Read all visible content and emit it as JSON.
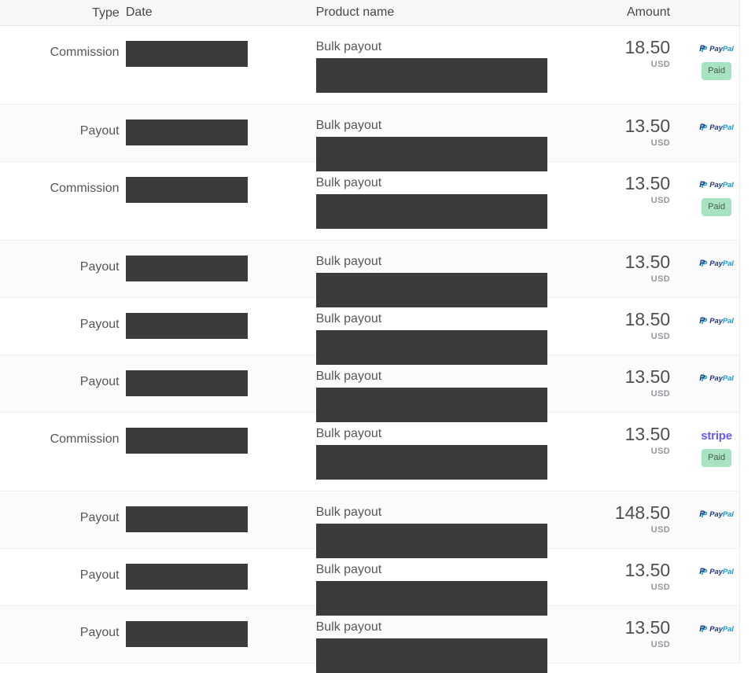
{
  "header": {
    "type": "Type",
    "date": "Date",
    "product": "Product name",
    "amount": "Amount"
  },
  "providers": {
    "paypal": {
      "monogram": "P",
      "pay": "Pay",
      "pal": "Pal"
    },
    "stripe": {
      "label": "stripe"
    }
  },
  "badge": {
    "paid": "Paid"
  },
  "colors": {
    "paypal_dark": "#253b80",
    "paypal_light": "#179bd7",
    "stripe": "#635bff",
    "paid_bg": "#a7e2c1",
    "paid_text": "#4b5d53",
    "redaction": "#3a3c3c"
  },
  "rows": [
    {
      "type": "Commission",
      "product": "Bulk payout",
      "amount": "18.50",
      "currency": "USD",
      "provider": "paypal",
      "paid": true
    },
    {
      "type": "Payout",
      "product": "Bulk payout",
      "amount": "13.50",
      "currency": "USD",
      "provider": "paypal",
      "paid": false
    },
    {
      "type": "Commission",
      "product": "Bulk payout",
      "amount": "13.50",
      "currency": "USD",
      "provider": "paypal",
      "paid": true
    },
    {
      "type": "Payout",
      "product": "Bulk payout",
      "amount": "13.50",
      "currency": "USD",
      "provider": "paypal",
      "paid": false
    },
    {
      "type": "Payout",
      "product": "Bulk payout",
      "amount": "18.50",
      "currency": "USD",
      "provider": "paypal",
      "paid": false
    },
    {
      "type": "Payout",
      "product": "Bulk payout",
      "amount": "13.50",
      "currency": "USD",
      "provider": "paypal",
      "paid": false
    },
    {
      "type": "Commission",
      "product": "Bulk payout",
      "amount": "13.50",
      "currency": "USD",
      "provider": "stripe",
      "paid": true
    },
    {
      "type": "Payout",
      "product": "Bulk payout",
      "amount": "148.50",
      "currency": "USD",
      "provider": "paypal",
      "paid": false
    },
    {
      "type": "Payout",
      "product": "Bulk payout",
      "amount": "13.50",
      "currency": "USD",
      "provider": "paypal",
      "paid": false
    },
    {
      "type": "Payout",
      "product": "Bulk payout",
      "amount": "13.50",
      "currency": "USD",
      "provider": "paypal",
      "paid": false
    }
  ]
}
